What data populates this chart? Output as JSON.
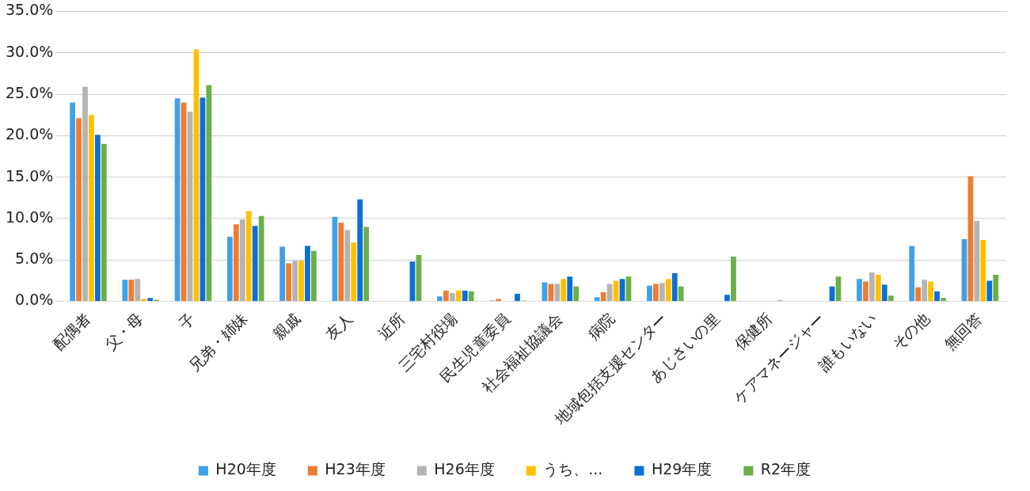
{
  "chart_data": {
    "type": "bar",
    "categories": [
      "配偶者",
      "父・母",
      "子",
      "兄弟・姉妹",
      "親戚",
      "友人",
      "近所",
      "三宅村役場",
      "民生児童委員",
      "社会福祉協議会",
      "病院",
      "地域包括支援センター",
      "あじさいの里",
      "保健所",
      "ケアマネージャー",
      "誰もいない",
      "その他",
      "無回答"
    ],
    "series": [
      {
        "name": "H20年度",
        "color": "#41a0e6",
        "values": [
          24.0,
          2.6,
          24.5,
          7.8,
          6.6,
          10.2,
          0,
          0.6,
          0.1,
          2.3,
          0.5,
          1.9,
          0,
          0,
          0,
          2.7,
          6.7,
          7.5
        ]
      },
      {
        "name": "H23年度",
        "color": "#ee7d31",
        "values": [
          22.1,
          2.6,
          24.0,
          9.3,
          4.6,
          9.5,
          0,
          1.3,
          0.3,
          2.1,
          1.1,
          2.1,
          0,
          0,
          0,
          2.4,
          1.7,
          15.1
        ]
      },
      {
        "name": "H26年度",
        "color": "#b4b4b4",
        "values": [
          25.9,
          2.7,
          22.9,
          9.9,
          4.9,
          8.6,
          0,
          1.0,
          0,
          2.1,
          2.1,
          2.2,
          0,
          0,
          0,
          3.5,
          2.6,
          9.7
        ]
      },
      {
        "name": "うち、...",
        "color": "#ffc000",
        "values": [
          22.5,
          0.3,
          30.4,
          10.9,
          4.9,
          7.1,
          0,
          1.3,
          0,
          2.7,
          2.5,
          2.7,
          0,
          0,
          0,
          3.2,
          2.4,
          7.4
        ]
      },
      {
        "name": "H29年度",
        "color": "#0b6fd6",
        "values": [
          20.1,
          0.4,
          24.6,
          9.1,
          6.7,
          12.3,
          4.8,
          1.3,
          0.9,
          3.0,
          2.7,
          3.4,
          0.8,
          0.1,
          1.8,
          2.0,
          1.2,
          2.5
        ]
      },
      {
        "name": "R2年度",
        "color": "#6aaf47",
        "values": [
          19.0,
          0.2,
          26.1,
          10.3,
          6.1,
          9.0,
          5.6,
          1.2,
          0.1,
          1.8,
          3.0,
          1.8,
          5.4,
          0,
          3.0,
          0.7,
          0.4,
          3.2
        ]
      }
    ],
    "ylim": [
      0,
      35
    ],
    "yticks": [
      {
        "value": 0,
        "label": "0.0%"
      },
      {
        "value": 5,
        "label": "5.0%"
      },
      {
        "value": 10,
        "label": "10.0%"
      },
      {
        "value": 15,
        "label": "15.0%"
      },
      {
        "value": 20,
        "label": "20.0%"
      },
      {
        "value": 25,
        "label": "25.0%"
      },
      {
        "value": 30,
        "label": "30.0%"
      },
      {
        "value": 35,
        "label": "35.0%"
      }
    ],
    "grid": "y",
    "legend": "bottom"
  }
}
